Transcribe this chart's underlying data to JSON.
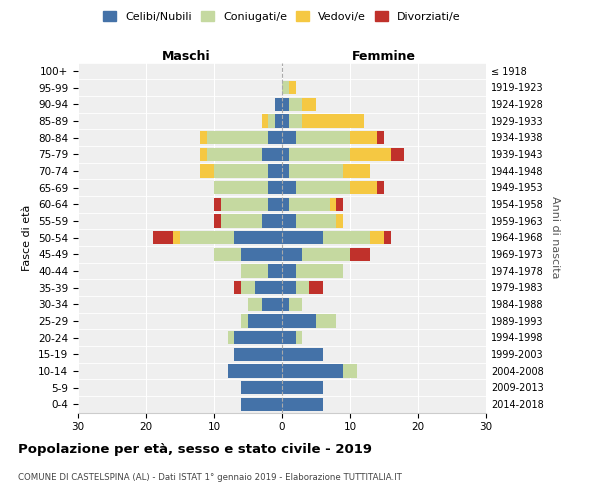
{
  "age_groups": [
    "0-4",
    "5-9",
    "10-14",
    "15-19",
    "20-24",
    "25-29",
    "30-34",
    "35-39",
    "40-44",
    "45-49",
    "50-54",
    "55-59",
    "60-64",
    "65-69",
    "70-74",
    "75-79",
    "80-84",
    "85-89",
    "90-94",
    "95-99",
    "100+"
  ],
  "birth_years": [
    "2014-2018",
    "2009-2013",
    "2004-2008",
    "1999-2003",
    "1994-1998",
    "1989-1993",
    "1984-1988",
    "1979-1983",
    "1974-1978",
    "1969-1973",
    "1964-1968",
    "1959-1963",
    "1954-1958",
    "1949-1953",
    "1944-1948",
    "1939-1943",
    "1934-1938",
    "1929-1933",
    "1924-1928",
    "1919-1923",
    "≤ 1918"
  ],
  "maschi": {
    "celibi": [
      6,
      6,
      8,
      7,
      7,
      5,
      3,
      4,
      2,
      6,
      7,
      3,
      2,
      2,
      2,
      3,
      2,
      1,
      1,
      0,
      0
    ],
    "coniugati": [
      0,
      0,
      0,
      0,
      1,
      1,
      2,
      2,
      4,
      4,
      8,
      6,
      7,
      8,
      8,
      8,
      9,
      1,
      0,
      0,
      0
    ],
    "vedovi": [
      0,
      0,
      0,
      0,
      0,
      0,
      0,
      0,
      0,
      0,
      1,
      0,
      0,
      0,
      2,
      1,
      1,
      1,
      0,
      0,
      0
    ],
    "divorziati": [
      0,
      0,
      0,
      0,
      0,
      0,
      0,
      1,
      0,
      0,
      3,
      1,
      1,
      0,
      0,
      0,
      0,
      0,
      0,
      0,
      0
    ]
  },
  "femmine": {
    "nubili": [
      6,
      6,
      9,
      6,
      2,
      5,
      1,
      2,
      2,
      3,
      6,
      2,
      1,
      2,
      1,
      1,
      2,
      1,
      1,
      0,
      0
    ],
    "coniugate": [
      0,
      0,
      2,
      0,
      1,
      3,
      2,
      2,
      7,
      7,
      7,
      6,
      6,
      8,
      8,
      9,
      8,
      2,
      2,
      1,
      0
    ],
    "vedove": [
      0,
      0,
      0,
      0,
      0,
      0,
      0,
      0,
      0,
      0,
      2,
      1,
      1,
      4,
      4,
      6,
      4,
      9,
      2,
      1,
      0
    ],
    "divorziate": [
      0,
      0,
      0,
      0,
      0,
      0,
      0,
      2,
      0,
      3,
      1,
      0,
      1,
      1,
      0,
      2,
      1,
      0,
      0,
      0,
      0
    ]
  },
  "colors": {
    "celibi": "#4472a8",
    "coniugati": "#c5d9a0",
    "vedovi": "#f5c842",
    "divorziati": "#c0312b"
  },
  "xlim": 30,
  "title": "Popolazione per età, sesso e stato civile - 2019",
  "subtitle": "COMUNE DI CASTELSPINA (AL) - Dati ISTAT 1° gennaio 2019 - Elaborazione TUTTITALIA.IT",
  "ylabel_left": "Fasce di età",
  "ylabel_right": "Anni di nascita",
  "xlabel_left": "Maschi",
  "xlabel_right": "Femmine",
  "bg_color": "#efefef"
}
